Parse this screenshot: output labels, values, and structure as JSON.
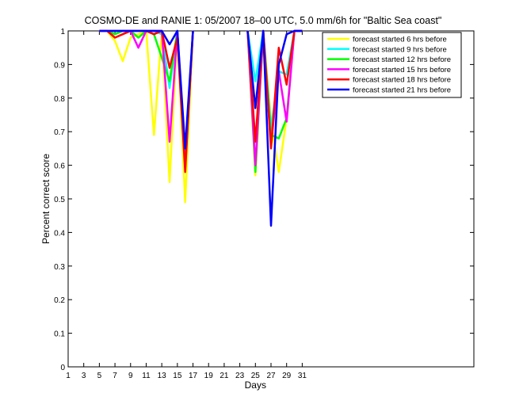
{
  "chart_data": {
    "type": "line",
    "title": "COSMO-DE and RANIE 1: 05/2007 18–00 UTC, 5.0 mm/6h for \"Baltic Sea coast\"",
    "xlabel": "Days",
    "ylabel": "Percent correct score",
    "xlim": [
      1,
      53
    ],
    "ylim": [
      0,
      1
    ],
    "xticks": [
      1,
      3,
      5,
      7,
      9,
      11,
      13,
      15,
      17,
      19,
      21,
      23,
      25,
      27,
      29,
      31
    ],
    "yticks": [
      0,
      0.1,
      0.2,
      0.3,
      0.4,
      0.5,
      0.6,
      0.7,
      0.8,
      0.9,
      1
    ],
    "ytick_labels": [
      "0",
      "0.1",
      "0.2",
      "0.3",
      "0.4",
      "0.5",
      "0.6",
      "0.7",
      "0.8",
      "0.9",
      "1"
    ],
    "grid": false,
    "legend_position": "top-right",
    "series": [
      {
        "name": "forecast started 6 hrs before",
        "color": "#ffff00",
        "segments": [
          [
            [
              5,
              1
            ],
            [
              6,
              1
            ],
            [
              7,
              0.97
            ],
            [
              8,
              0.91
            ],
            [
              9,
              0.98
            ],
            [
              10,
              0.99
            ],
            [
              11,
              1
            ],
            [
              12,
              0.69
            ],
            [
              13,
              1
            ],
            [
              14,
              0.55
            ],
            [
              15,
              1
            ],
            [
              16,
              0.49
            ],
            [
              17,
              1
            ]
          ],
          [
            [
              24,
              1
            ],
            [
              25,
              0.57
            ],
            [
              26,
              1
            ],
            [
              27,
              0.73
            ],
            [
              28,
              0.58
            ],
            [
              29,
              0.74
            ],
            [
              30,
              1
            ],
            [
              31,
              1
            ]
          ]
        ]
      },
      {
        "name": "forecast started 9 hrs before",
        "color": "#00ffff",
        "segments": [
          [
            [
              5,
              1
            ],
            [
              6,
              1
            ],
            [
              7,
              1
            ],
            [
              8,
              1
            ],
            [
              9,
              1
            ],
            [
              10,
              1
            ],
            [
              11,
              1
            ],
            [
              12,
              1
            ],
            [
              13,
              0.99
            ],
            [
              14,
              0.83
            ],
            [
              15,
              1
            ],
            [
              16,
              0.62
            ],
            [
              17,
              1
            ]
          ],
          [
            [
              24,
              1
            ],
            [
              25,
              0.85
            ],
            [
              26,
              1
            ],
            [
              27,
              0.71
            ],
            [
              28,
              0.88
            ],
            [
              29,
              0.87
            ],
            [
              30,
              1
            ],
            [
              31,
              1
            ]
          ]
        ]
      },
      {
        "name": "forecast started 12 hrs before",
        "color": "#00ff00",
        "segments": [
          [
            [
              5,
              1
            ],
            [
              6,
              1
            ],
            [
              7,
              0.99
            ],
            [
              8,
              1
            ],
            [
              9,
              1
            ],
            [
              10,
              0.98
            ],
            [
              11,
              1
            ],
            [
              12,
              0.99
            ],
            [
              13,
              0.92
            ],
            [
              14,
              0.85
            ],
            [
              15,
              1
            ],
            [
              16,
              0.59
            ],
            [
              17,
              1
            ]
          ],
          [
            [
              24,
              1
            ],
            [
              25,
              0.58
            ],
            [
              26,
              1
            ],
            [
              27,
              0.69
            ],
            [
              28,
              0.68
            ],
            [
              29,
              0.74
            ],
            [
              30,
              1
            ],
            [
              31,
              1
            ]
          ]
        ]
      },
      {
        "name": "forecast started 15 hrs before",
        "color": "#ff00ff",
        "segments": [
          [
            [
              5,
              1
            ],
            [
              6,
              1
            ],
            [
              7,
              1
            ],
            [
              8,
              1
            ],
            [
              9,
              1
            ],
            [
              10,
              0.95
            ],
            [
              11,
              1
            ],
            [
              12,
              1
            ],
            [
              13,
              1
            ],
            [
              14,
              0.67
            ],
            [
              15,
              1
            ],
            [
              16,
              0.6
            ],
            [
              17,
              1
            ]
          ],
          [
            [
              24,
              1
            ],
            [
              25,
              0.6
            ],
            [
              26,
              1
            ],
            [
              27,
              0.66
            ],
            [
              28,
              0.88
            ],
            [
              29,
              0.73
            ],
            [
              30,
              1
            ],
            [
              31,
              1
            ]
          ]
        ]
      },
      {
        "name": "forecast started 18 hrs before",
        "color": "#ff0000",
        "segments": [
          [
            [
              5,
              1
            ],
            [
              6,
              1
            ],
            [
              7,
              0.98
            ],
            [
              8,
              0.99
            ],
            [
              9,
              1
            ],
            [
              10,
              1
            ],
            [
              11,
              1
            ],
            [
              12,
              0.99
            ],
            [
              13,
              1
            ],
            [
              14,
              0.89
            ],
            [
              15,
              0.98
            ],
            [
              16,
              0.58
            ],
            [
              17,
              1
            ]
          ],
          [
            [
              24,
              1
            ],
            [
              25,
              0.67
            ],
            [
              26,
              1
            ],
            [
              27,
              0.65
            ],
            [
              28,
              0.95
            ],
            [
              29,
              0.84
            ],
            [
              30,
              1
            ],
            [
              31,
              1
            ]
          ]
        ]
      },
      {
        "name": "forecast started 21 hrs before",
        "color": "#0000ff",
        "segments": [
          [
            [
              5,
              1
            ],
            [
              6,
              1
            ],
            [
              7,
              1
            ],
            [
              8,
              1
            ],
            [
              9,
              1
            ],
            [
              10,
              1
            ],
            [
              11,
              1
            ],
            [
              12,
              1
            ],
            [
              13,
              1
            ],
            [
              14,
              0.96
            ],
            [
              15,
              1
            ],
            [
              16,
              0.65
            ],
            [
              17,
              1
            ]
          ],
          [
            [
              24,
              1
            ],
            [
              25,
              0.77
            ],
            [
              26,
              1
            ],
            [
              27,
              0.42
            ],
            [
              28,
              0.9
            ],
            [
              29,
              0.99
            ],
            [
              30,
              1
            ],
            [
              31,
              1
            ]
          ]
        ]
      }
    ]
  }
}
